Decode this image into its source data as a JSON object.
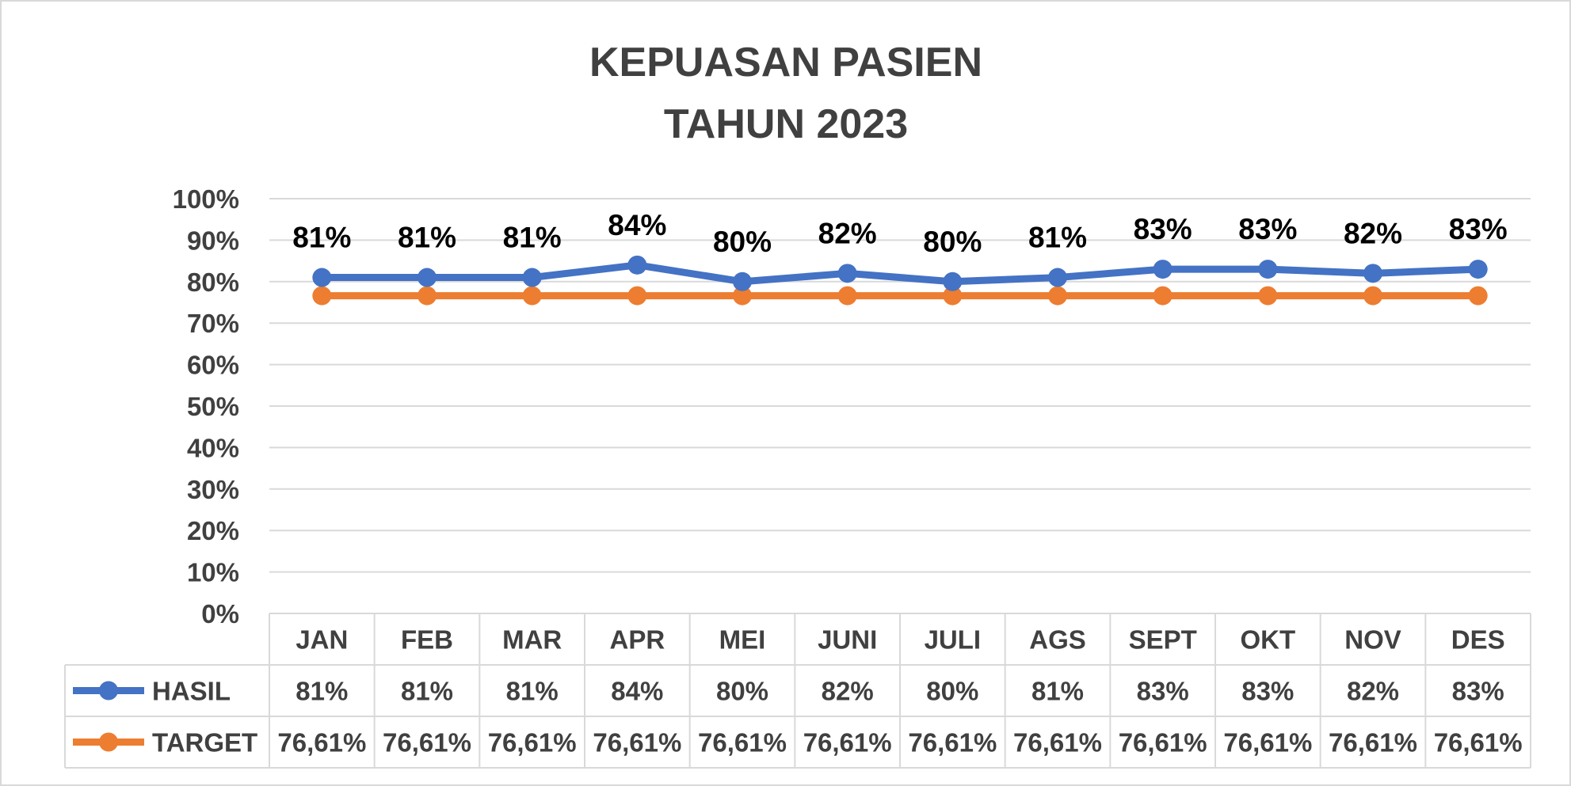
{
  "chart_data": {
    "type": "line",
    "title": "KEPUASAN PASIEN",
    "subtitle": "TAHUN 2023",
    "categories": [
      "JAN",
      "FEB",
      "MAR",
      "APR",
      "MEI",
      "JUNI",
      "JULI",
      "AGS",
      "SEPT",
      "OKT",
      "NOV",
      "DES"
    ],
    "y_ticks": [
      "0%",
      "10%",
      "20%",
      "30%",
      "40%",
      "50%",
      "60%",
      "70%",
      "80%",
      "90%",
      "100%"
    ],
    "ylim": [
      0,
      100
    ],
    "grid": true,
    "legend": "data-table",
    "series": [
      {
        "name": "HASIL",
        "color": "#4472c4",
        "values": [
          81,
          81,
          81,
          84,
          80,
          82,
          80,
          81,
          83,
          83,
          82,
          83
        ],
        "labels": [
          "81%",
          "81%",
          "81%",
          "84%",
          "80%",
          "82%",
          "80%",
          "81%",
          "83%",
          "83%",
          "82%",
          "83%"
        ],
        "show_data_labels": true
      },
      {
        "name": "TARGET",
        "color": "#ed7d31",
        "values": [
          76.61,
          76.61,
          76.61,
          76.61,
          76.61,
          76.61,
          76.61,
          76.61,
          76.61,
          76.61,
          76.61,
          76.61
        ],
        "labels": [
          "76,61%",
          "76,61%",
          "76,61%",
          "76,61%",
          "76,61%",
          "76,61%",
          "76,61%",
          "76,61%",
          "76,61%",
          "76,61%",
          "76,61%",
          "76,61%"
        ],
        "show_data_labels": false
      }
    ]
  },
  "colors": {
    "text": "#404040",
    "data_label": "#000000",
    "gridline": "#d9d9d9",
    "border": "#d9d9d9"
  }
}
